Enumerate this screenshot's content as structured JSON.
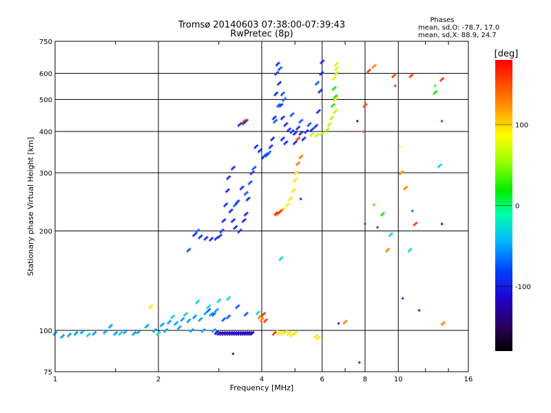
{
  "chart_data": {
    "type": "scatter",
    "title": "Tromsø 20140603 07:38:00-07:39:43",
    "subtitle": "RwPretec (8p)",
    "xlabel": "Frequency [MHz]",
    "ylabel": "Stationary phase Virtual Height [km]",
    "x_scale": "log",
    "y_scale": "log",
    "xlim": [
      1,
      16
    ],
    "ylim": [
      75,
      750
    ],
    "x_ticks": [
      1,
      2,
      4,
      6,
      8,
      10,
      16
    ],
    "y_ticks": [
      75,
      100,
      200,
      300,
      400,
      500,
      600,
      750
    ],
    "grid": true,
    "stats": {
      "heading": "Phases",
      "line_o": "mean, sd,O:  -78.7, 17.0",
      "line_x": "mean, sd,X:  88.9, 24.7"
    },
    "colorbar": {
      "label": "[deg]",
      "range": [
        -180,
        180
      ],
      "ticks": [
        100,
        0,
        -100
      ]
    },
    "series": [
      {
        "phase_deg": -118,
        "points": [
          [
            3.0,
            98
          ],
          [
            3.05,
            98
          ],
          [
            3.1,
            98
          ],
          [
            3.15,
            98
          ],
          [
            3.2,
            98
          ],
          [
            3.25,
            98
          ],
          [
            3.3,
            98
          ],
          [
            3.35,
            98
          ],
          [
            3.4,
            98
          ],
          [
            3.45,
            98
          ],
          [
            3.5,
            98
          ],
          [
            3.55,
            98
          ],
          [
            3.6,
            98
          ],
          [
            3.65,
            98
          ],
          [
            3.7,
            98
          ],
          [
            2.95,
            98.5
          ],
          [
            3.75,
            98
          ]
        ]
      },
      {
        "phase_deg": -95,
        "points": [
          [
            2.55,
            195
          ],
          [
            2.65,
            192
          ],
          [
            2.75,
            190
          ],
          [
            2.85,
            189
          ],
          [
            2.95,
            190
          ],
          [
            3.02,
            193
          ],
          [
            3.06,
            200
          ],
          [
            3.1,
            215
          ],
          [
            3.14,
            240
          ],
          [
            3.18,
            265
          ],
          [
            3.2,
            290
          ],
          [
            3.25,
            230
          ],
          [
            3.3,
            215
          ],
          [
            3.35,
            205
          ],
          [
            3.45,
            200
          ],
          [
            3.55,
            215
          ],
          [
            3.65,
            250
          ],
          [
            3.75,
            300
          ],
          [
            3.85,
            360
          ],
          [
            3.95,
            350
          ],
          [
            4.05,
            335
          ],
          [
            4.15,
            340
          ],
          [
            4.25,
            360
          ],
          [
            4.3,
            380
          ],
          [
            4.35,
            440
          ],
          [
            4.4,
            520
          ],
          [
            4.42,
            600
          ],
          [
            4.45,
            640
          ],
          [
            4.5,
            560
          ],
          [
            4.55,
            480
          ],
          [
            4.6,
            440
          ],
          [
            4.7,
            420
          ],
          [
            4.8,
            405
          ],
          [
            4.9,
            400
          ],
          [
            5.0,
            395
          ],
          [
            5.2,
            395
          ],
          [
            5.4,
            400
          ],
          [
            5.6,
            405
          ],
          [
            5.75,
            415
          ],
          [
            5.85,
            460
          ],
          [
            5.92,
            530
          ],
          [
            5.97,
            600
          ],
          [
            6.0,
            650
          ],
          [
            3.45,
            420
          ],
          [
            3.55,
            425
          ],
          [
            3.6,
            430
          ],
          [
            3.3,
            310
          ],
          [
            3.5,
            270
          ],
          [
            3.4,
            245
          ],
          [
            3.6,
            225
          ],
          [
            4.6,
            380
          ],
          [
            4.7,
            370
          ],
          [
            5.0,
            370
          ],
          [
            5.3,
            380
          ],
          [
            5.1,
            410
          ]
        ]
      },
      {
        "phase_deg": -75,
        "points": [
          [
            2.45,
            175
          ],
          [
            2.6,
            200
          ],
          [
            3.35,
            240
          ],
          [
            3.6,
            260
          ],
          [
            3.7,
            280
          ],
          [
            3.8,
            310
          ],
          [
            4.1,
            340
          ],
          [
            4.2,
            345
          ],
          [
            4.38,
            430
          ],
          [
            4.48,
            480
          ],
          [
            4.52,
            620
          ],
          [
            4.6,
            520
          ],
          [
            4.65,
            500
          ],
          [
            4.9,
            450
          ],
          [
            5.2,
            430
          ],
          [
            5.5,
            420
          ],
          [
            5.8,
            560
          ],
          [
            3.2,
            110
          ],
          [
            3.4,
            118
          ],
          [
            3.6,
            112
          ],
          [
            2.9,
            112
          ],
          [
            3.1,
            108
          ],
          [
            2.8,
            115
          ]
        ]
      },
      {
        "phase_deg": -55,
        "points": [
          [
            1.0,
            98
          ],
          [
            1.05,
            96
          ],
          [
            1.1,
            97
          ],
          [
            1.15,
            98
          ],
          [
            1.2,
            99
          ],
          [
            1.3,
            98
          ],
          [
            1.4,
            99
          ],
          [
            1.5,
            98
          ],
          [
            1.6,
            99
          ],
          [
            1.7,
            98
          ],
          [
            1.75,
            99
          ],
          [
            1.85,
            103
          ],
          [
            1.95,
            100
          ],
          [
            2.05,
            104
          ],
          [
            2.15,
            106
          ],
          [
            2.25,
            105
          ],
          [
            2.35,
            108
          ],
          [
            2.45,
            107
          ],
          [
            2.55,
            110
          ],
          [
            2.65,
            108
          ],
          [
            2.75,
            113
          ],
          [
            2.85,
            112
          ],
          [
            2.95,
            115
          ],
          [
            1.45,
            103
          ],
          [
            2.1,
            100
          ],
          [
            2.3,
            102
          ],
          [
            2.5,
            100
          ],
          [
            2.7,
            100
          ],
          [
            2.9,
            100
          ]
        ]
      },
      {
        "phase_deg": -30,
        "points": [
          [
            1.25,
            97
          ],
          [
            1.55,
            98
          ],
          [
            2.0,
            98
          ],
          [
            2.2,
            110
          ],
          [
            2.4,
            112
          ],
          [
            2.6,
            122
          ],
          [
            2.8,
            118
          ],
          [
            3.0,
            123
          ],
          [
            3.2,
            125
          ],
          [
            4.55,
            165
          ],
          [
            13.2,
            315
          ],
          [
            9.5,
            195
          ],
          [
            10.8,
            175
          ],
          [
            3.9,
            113
          ]
        ]
      },
      {
        "phase_deg": 20,
        "points": [
          [
            6.5,
            540
          ],
          [
            6.55,
            510
          ],
          [
            6.45,
            480
          ],
          [
            9.0,
            225
          ],
          [
            12.8,
            525
          ]
        ]
      },
      {
        "phase_deg": 60,
        "points": [
          [
            6.4,
            440
          ],
          [
            6.3,
            420
          ],
          [
            6.2,
            405
          ],
          [
            6.0,
            395
          ],
          [
            5.8,
            390
          ],
          [
            5.6,
            392
          ],
          [
            6.55,
            460
          ],
          [
            6.6,
            600
          ]
        ]
      },
      {
        "phase_deg": 95,
        "points": [
          [
            4.4,
            99
          ],
          [
            4.5,
            98
          ],
          [
            4.6,
            98
          ],
          [
            4.7,
            99
          ],
          [
            4.8,
            98
          ],
          [
            4.9,
            97
          ],
          [
            5.0,
            98
          ],
          [
            6.5,
            580
          ],
          [
            6.6,
            620
          ],
          [
            6.6,
            640
          ],
          [
            6.55,
            500
          ],
          [
            4.6,
            232
          ],
          [
            4.75,
            240
          ],
          [
            4.85,
            250
          ],
          [
            4.95,
            265
          ],
          [
            5.0,
            285
          ],
          [
            5.05,
            300
          ],
          [
            5.75,
            96
          ],
          [
            5.85,
            95
          ],
          [
            1.9,
            118
          ]
        ]
      },
      {
        "phase_deg": 130,
        "points": [
          [
            4.45,
            225
          ],
          [
            4.55,
            230
          ],
          [
            5.1,
            320
          ],
          [
            5.2,
            335
          ],
          [
            3.95,
            110
          ],
          [
            4.0,
            108
          ],
          [
            7.0,
            106
          ],
          [
            10.2,
            300
          ],
          [
            10.5,
            270
          ],
          [
            13.5,
            105
          ],
          [
            9.3,
            175
          ],
          [
            8.5,
            630
          ]
        ]
      },
      {
        "phase_deg": 160,
        "points": [
          [
            4.4,
            226
          ],
          [
            4.5,
            228
          ],
          [
            3.55,
            430
          ],
          [
            4.35,
            98
          ],
          [
            4.1,
            107
          ],
          [
            5.1,
            380
          ],
          [
            8.0,
            480
          ],
          [
            9.7,
            590
          ],
          [
            10.9,
            590
          ],
          [
            11.2,
            210
          ],
          [
            8.2,
            610
          ],
          [
            13.4,
            575
          ],
          [
            4.05,
            112
          ]
        ]
      }
    ],
    "sparse_points": [
      {
        "x": 7.7,
        "y": 80,
        "phase_deg": -110
      },
      {
        "x": 8.0,
        "y": 210,
        "phase_deg": -100
      },
      {
        "x": 8.7,
        "y": 205,
        "phase_deg": -95
      },
      {
        "x": 11.5,
        "y": 115,
        "phase_deg": -150
      },
      {
        "x": 13.4,
        "y": 210,
        "phase_deg": -140
      },
      {
        "x": 10.3,
        "y": 125,
        "phase_deg": -120
      },
      {
        "x": 11.0,
        "y": 230,
        "phase_deg": -80
      },
      {
        "x": 13.4,
        "y": 430,
        "phase_deg": -90
      },
      {
        "x": 12.8,
        "y": 550,
        "phase_deg": 10
      },
      {
        "x": 7.6,
        "y": 430,
        "phase_deg": -130
      },
      {
        "x": 8.5,
        "y": 240,
        "phase_deg": 140
      },
      {
        "x": 3.3,
        "y": 85,
        "phase_deg": -160
      },
      {
        "x": 6.7,
        "y": 105,
        "phase_deg": -125
      },
      {
        "x": 5.2,
        "y": 250,
        "phase_deg": -130
      },
      {
        "x": 4.5,
        "y": 385,
        "phase_deg": 80
      },
      {
        "x": 7.9,
        "y": 400,
        "phase_deg": 160
      },
      {
        "x": 10.1,
        "y": 360,
        "phase_deg": 90
      },
      {
        "x": 9.8,
        "y": 550,
        "phase_deg": 170
      }
    ]
  }
}
